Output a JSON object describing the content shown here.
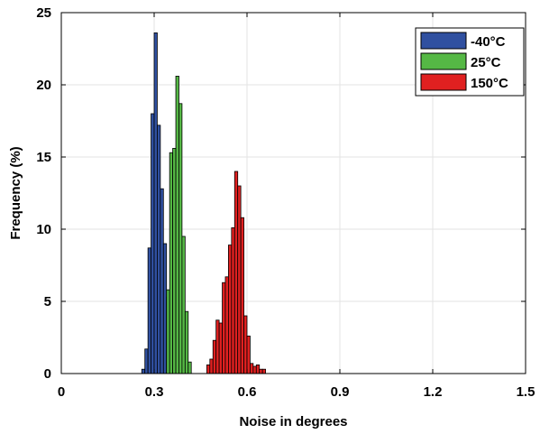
{
  "chart_data": {
    "type": "bar",
    "xlabel": "Noise in degrees",
    "ylabel": "Frequency (%)",
    "xlim": [
      0,
      1.5
    ],
    "ylim": [
      0,
      25
    ],
    "x_ticks": [
      "0",
      "0.3",
      "0.6",
      "0.9",
      "1.2",
      "1.5"
    ],
    "y_ticks": [
      "0",
      "5",
      "10",
      "15",
      "20",
      "25"
    ],
    "grid": true,
    "legend_position": "top-right",
    "bin_width": 0.01,
    "series": [
      {
        "name": "-40°C",
        "color": "#3050a0",
        "bins": [
          {
            "x": 0.265,
            "y": 0.3
          },
          {
            "x": 0.275,
            "y": 1.7
          },
          {
            "x": 0.285,
            "y": 8.7
          },
          {
            "x": 0.295,
            "y": 18.0
          },
          {
            "x": 0.305,
            "y": 23.6
          },
          {
            "x": 0.315,
            "y": 17.2
          },
          {
            "x": 0.325,
            "y": 12.8
          },
          {
            "x": 0.335,
            "y": 9.0
          },
          {
            "x": 0.345,
            "y": 5.3
          },
          {
            "x": 0.355,
            "y": 2.5
          },
          {
            "x": 0.365,
            "y": 0.6
          }
        ]
      },
      {
        "name": "25°C",
        "color": "#55b845",
        "bins": [
          {
            "x": 0.345,
            "y": 5.8
          },
          {
            "x": 0.355,
            "y": 15.3
          },
          {
            "x": 0.365,
            "y": 15.6
          },
          {
            "x": 0.375,
            "y": 20.6
          },
          {
            "x": 0.385,
            "y": 18.7
          },
          {
            "x": 0.395,
            "y": 9.5
          },
          {
            "x": 0.405,
            "y": 4.3
          },
          {
            "x": 0.415,
            "y": 0.8
          }
        ]
      },
      {
        "name": "150°C",
        "color": "#e02020",
        "bins": [
          {
            "x": 0.475,
            "y": 0.6
          },
          {
            "x": 0.485,
            "y": 1.0
          },
          {
            "x": 0.495,
            "y": 2.3
          },
          {
            "x": 0.505,
            "y": 3.7
          },
          {
            "x": 0.515,
            "y": 3.5
          },
          {
            "x": 0.525,
            "y": 6.3
          },
          {
            "x": 0.535,
            "y": 6.7
          },
          {
            "x": 0.545,
            "y": 8.9
          },
          {
            "x": 0.555,
            "y": 10.1
          },
          {
            "x": 0.565,
            "y": 14.0
          },
          {
            "x": 0.575,
            "y": 13.0
          },
          {
            "x": 0.585,
            "y": 10.8
          },
          {
            "x": 0.595,
            "y": 4.0
          },
          {
            "x": 0.605,
            "y": 2.6
          },
          {
            "x": 0.615,
            "y": 0.7
          },
          {
            "x": 0.625,
            "y": 0.5
          },
          {
            "x": 0.635,
            "y": 0.6
          },
          {
            "x": 0.645,
            "y": 0.3
          },
          {
            "x": 0.655,
            "y": 0.3
          }
        ]
      }
    ]
  }
}
